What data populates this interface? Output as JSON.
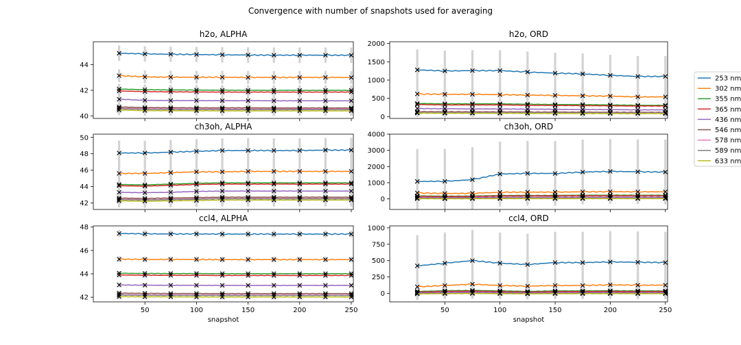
{
  "suptitle": "Convergence with number of snapshots used for averaging",
  "colors": [
    "#1f77b4",
    "#ff7f0e",
    "#2ca02c",
    "#d62728",
    "#9467bd",
    "#8c564b",
    "#e377c2",
    "#7f7f7f",
    "#bcbd22"
  ],
  "legend": {
    "placement": "right",
    "entries": [
      "253 nm",
      "302 nm",
      "355 nm",
      "365 nm",
      "436 nm",
      "546 nm",
      "578 nm",
      "589 nm",
      "633 nm"
    ]
  },
  "chart_data": [
    {
      "type": "line",
      "title": "h2o, ALPHA",
      "xlabel": "",
      "ylabel": "",
      "xlim": [
        0,
        252
      ],
      "ylim": [
        39.8,
        45.8
      ],
      "xticks": [
        50,
        100,
        150,
        200,
        250
      ],
      "yticks": [
        40,
        42,
        44
      ],
      "markers_x": [
        25,
        50,
        75,
        100,
        125,
        150,
        175,
        200,
        225,
        250
      ],
      "series": [
        {
          "label": "253 nm",
          "values": [
            44.9,
            44.85,
            44.82,
            44.8,
            44.78,
            44.76,
            44.75,
            44.75,
            44.75,
            44.74
          ],
          "err": 0.6
        },
        {
          "label": "302 nm",
          "values": [
            43.15,
            43.05,
            43.03,
            43.02,
            43.02,
            43.01,
            43.01,
            43.01,
            43.01,
            43.0
          ],
          "err": 0.5
        },
        {
          "label": "355 nm",
          "values": [
            42.1,
            42.05,
            42.03,
            42.02,
            42.01,
            42.0,
            42.0,
            42.0,
            42.0,
            42.0
          ],
          "err": 0.4
        },
        {
          "label": "365 nm",
          "values": [
            41.95,
            41.9,
            41.88,
            41.87,
            41.86,
            41.86,
            41.86,
            41.86,
            41.86,
            41.86
          ],
          "err": 0.4
        },
        {
          "label": "436 nm",
          "values": [
            41.3,
            41.22,
            41.2,
            41.2,
            41.19,
            41.19,
            41.18,
            41.18,
            41.18,
            41.18
          ],
          "err": 0.4
        },
        {
          "label": "546 nm",
          "values": [
            40.7,
            40.65,
            40.64,
            40.63,
            40.63,
            40.63,
            40.62,
            40.62,
            40.62,
            40.62
          ],
          "err": 0.4
        },
        {
          "label": "578 nm",
          "values": [
            40.6,
            40.56,
            40.55,
            40.55,
            40.54,
            40.54,
            40.54,
            40.54,
            40.54,
            40.54
          ],
          "err": 0.4
        },
        {
          "label": "589 nm",
          "values": [
            40.55,
            40.51,
            40.5,
            40.5,
            40.49,
            40.49,
            40.49,
            40.49,
            40.49,
            40.49
          ],
          "err": 0.4
        },
        {
          "label": "633 nm",
          "values": [
            40.45,
            40.41,
            40.4,
            40.4,
            40.39,
            40.39,
            40.39,
            40.39,
            40.39,
            40.39
          ],
          "err": 0.4
        }
      ]
    },
    {
      "type": "line",
      "title": "h2o, ORD",
      "xlabel": "",
      "ylabel": "",
      "xlim": [
        0,
        252
      ],
      "ylim": [
        -50,
        2050
      ],
      "xticks": [
        50,
        100,
        150,
        200,
        250
      ],
      "yticks": [
        0,
        500,
        1000,
        1500,
        2000
      ],
      "markers_x": [
        25,
        50,
        75,
        100,
        125,
        150,
        175,
        200,
        225,
        250
      ],
      "series": [
        {
          "label": "253 nm",
          "values": [
            1280,
            1250,
            1260,
            1260,
            1220,
            1190,
            1170,
            1130,
            1100,
            1100
          ],
          "err": 560
        },
        {
          "label": "302 nm",
          "values": [
            620,
            610,
            610,
            600,
            590,
            580,
            570,
            560,
            540,
            540
          ],
          "err": 300
        },
        {
          "label": "355 nm",
          "values": [
            360,
            350,
            350,
            350,
            340,
            330,
            330,
            320,
            310,
            310
          ],
          "err": 200
        },
        {
          "label": "365 nm",
          "values": [
            330,
            320,
            320,
            320,
            310,
            305,
            300,
            295,
            290,
            290
          ],
          "err": 180
        },
        {
          "label": "436 nm",
          "values": [
            220,
            215,
            210,
            210,
            205,
            200,
            195,
            190,
            185,
            185
          ],
          "err": 150
        },
        {
          "label": "546 nm",
          "values": [
            140,
            135,
            135,
            132,
            130,
            128,
            125,
            122,
            120,
            120
          ],
          "err": 120
        },
        {
          "label": "578 nm",
          "values": [
            125,
            120,
            120,
            118,
            116,
            114,
            112,
            110,
            108,
            108
          ],
          "err": 110
        },
        {
          "label": "589 nm",
          "values": [
            115,
            112,
            110,
            110,
            108,
            106,
            104,
            102,
            100,
            100
          ],
          "err": 110
        },
        {
          "label": "633 nm",
          "values": [
            95,
            92,
            90,
            90,
            88,
            86,
            85,
            84,
            82,
            82
          ],
          "err": 100
        }
      ]
    },
    {
      "type": "line",
      "title": "ch3oh, ALPHA",
      "xlabel": "",
      "ylabel": "",
      "xlim": [
        0,
        252
      ],
      "ylim": [
        41.2,
        50.4
      ],
      "xticks": [
        50,
        100,
        150,
        200,
        250
      ],
      "yticks": [
        42,
        44,
        46,
        48,
        50
      ],
      "markers_x": [
        25,
        50,
        75,
        100,
        125,
        150,
        175,
        200,
        225,
        250
      ],
      "series": [
        {
          "label": "253 nm",
          "values": [
            48.1,
            48.1,
            48.2,
            48.3,
            48.4,
            48.4,
            48.4,
            48.4,
            48.45,
            48.45
          ],
          "err": 1.5
        },
        {
          "label": "302 nm",
          "values": [
            45.6,
            45.6,
            45.7,
            45.8,
            45.8,
            45.85,
            45.85,
            45.85,
            45.85,
            45.85
          ],
          "err": 1.2
        },
        {
          "label": "355 nm",
          "values": [
            44.25,
            44.2,
            44.3,
            44.4,
            44.45,
            44.45,
            44.45,
            44.45,
            44.45,
            44.45
          ],
          "err": 1.0
        },
        {
          "label": "365 nm",
          "values": [
            44.1,
            44.05,
            44.15,
            44.25,
            44.3,
            44.3,
            44.3,
            44.3,
            44.3,
            44.3
          ],
          "err": 1.0
        },
        {
          "label": "436 nm",
          "values": [
            43.3,
            43.25,
            43.3,
            43.4,
            43.45,
            43.45,
            43.45,
            43.45,
            43.45,
            43.45
          ],
          "err": 0.9
        },
        {
          "label": "546 nm",
          "values": [
            42.6,
            42.55,
            42.6,
            42.65,
            42.7,
            42.7,
            42.7,
            42.7,
            42.7,
            42.7
          ],
          "err": 0.8
        },
        {
          "label": "578 nm",
          "values": [
            42.45,
            42.4,
            42.45,
            42.5,
            42.55,
            42.55,
            42.55,
            42.55,
            42.55,
            42.55
          ],
          "err": 0.8
        },
        {
          "label": "589 nm",
          "values": [
            42.4,
            42.35,
            42.4,
            42.45,
            42.5,
            42.5,
            42.5,
            42.5,
            42.5,
            42.5
          ],
          "err": 0.8
        },
        {
          "label": "633 nm",
          "values": [
            42.25,
            42.2,
            42.25,
            42.3,
            42.35,
            42.35,
            42.35,
            42.35,
            42.35,
            42.35
          ],
          "err": 0.8
        }
      ]
    },
    {
      "type": "line",
      "title": "ch3oh, ORD",
      "xlabel": "",
      "ylabel": "",
      "xlim": [
        0,
        252
      ],
      "ylim": [
        -650,
        4000
      ],
      "xticks": [
        50,
        100,
        150,
        200,
        250
      ],
      "yticks": [
        0,
        1000,
        2000,
        3000,
        4000
      ],
      "markers_x": [
        25,
        50,
        75,
        100,
        125,
        150,
        175,
        200,
        225,
        250
      ],
      "series": [
        {
          "label": "253 nm",
          "values": [
            1080,
            1090,
            1190,
            1540,
            1580,
            1570,
            1660,
            1700,
            1680,
            1660
          ],
          "err": 2000
        },
        {
          "label": "302 nm",
          "values": [
            370,
            340,
            350,
            410,
            420,
            420,
            440,
            450,
            440,
            440
          ],
          "err": 700
        },
        {
          "label": "355 nm",
          "values": [
            190,
            170,
            180,
            210,
            220,
            220,
            230,
            235,
            230,
            230
          ],
          "err": 450
        },
        {
          "label": "365 nm",
          "values": [
            160,
            140,
            150,
            180,
            190,
            190,
            195,
            200,
            195,
            195
          ],
          "err": 400
        },
        {
          "label": "436 nm",
          "values": [
            90,
            80,
            85,
            100,
            105,
            105,
            110,
            112,
            110,
            110
          ],
          "err": 300
        },
        {
          "label": "546 nm",
          "values": [
            40,
            35,
            38,
            45,
            48,
            48,
            50,
            52,
            50,
            50
          ],
          "err": 250
        },
        {
          "label": "578 nm",
          "values": [
            30,
            26,
            28,
            34,
            36,
            36,
            38,
            39,
            38,
            38
          ],
          "err": 250
        },
        {
          "label": "589 nm",
          "values": [
            25,
            22,
            24,
            30,
            32,
            32,
            33,
            34,
            33,
            33
          ],
          "err": 250
        },
        {
          "label": "633 nm",
          "values": [
            15,
            12,
            14,
            18,
            20,
            20,
            21,
            22,
            21,
            21
          ],
          "err": 250
        }
      ]
    },
    {
      "type": "line",
      "title": "ccl4, ALPHA",
      "xlabel": "snapshot",
      "ylabel": "",
      "xlim": [
        0,
        252
      ],
      "ylim": [
        41.6,
        48.1
      ],
      "xticks": [
        50,
        100,
        150,
        200,
        250
      ],
      "yticks": [
        42,
        44,
        46,
        48
      ],
      "markers_x": [
        25,
        50,
        75,
        100,
        125,
        150,
        175,
        200,
        225,
        250
      ],
      "series": [
        {
          "label": "253 nm",
          "values": [
            47.45,
            47.42,
            47.41,
            47.41,
            47.4,
            47.4,
            47.4,
            47.4,
            47.4,
            47.4
          ],
          "err": 0.3
        },
        {
          "label": "302 nm",
          "values": [
            45.25,
            45.23,
            45.23,
            45.23,
            45.22,
            45.22,
            45.22,
            45.22,
            45.22,
            45.22
          ],
          "err": 0.25
        },
        {
          "label": "355 nm",
          "values": [
            44.05,
            44.03,
            44.02,
            44.02,
            44.01,
            44.01,
            44.01,
            44.01,
            44.01,
            44.01
          ],
          "err": 0.2
        },
        {
          "label": "365 nm",
          "values": [
            43.9,
            43.88,
            43.87,
            43.87,
            43.86,
            43.86,
            43.86,
            43.86,
            43.86,
            43.86
          ],
          "err": 0.2
        },
        {
          "label": "436 nm",
          "values": [
            43.05,
            43.03,
            43.02,
            43.02,
            43.01,
            43.01,
            43.01,
            43.01,
            43.01,
            43.01
          ],
          "err": 0.2
        },
        {
          "label": "546 nm",
          "values": [
            42.35,
            42.33,
            42.32,
            42.32,
            42.31,
            42.31,
            42.31,
            42.31,
            42.31,
            42.31
          ],
          "err": 0.2
        },
        {
          "label": "578 nm",
          "values": [
            42.22,
            42.2,
            42.2,
            42.19,
            42.19,
            42.19,
            42.19,
            42.19,
            42.19,
            42.19
          ],
          "err": 0.2
        },
        {
          "label": "589 nm",
          "values": [
            42.18,
            42.16,
            42.16,
            42.15,
            42.15,
            42.15,
            42.15,
            42.15,
            42.15,
            42.15
          ],
          "err": 0.2
        },
        {
          "label": "633 nm",
          "values": [
            42.05,
            42.03,
            42.03,
            42.02,
            42.02,
            42.02,
            42.02,
            42.02,
            42.02,
            42.02
          ],
          "err": 0.2
        }
      ]
    },
    {
      "type": "line",
      "title": "ccl4, ORD",
      "xlabel": "snapshot",
      "ylabel": "",
      "xlim": [
        0,
        252
      ],
      "ylim": [
        -130,
        1030
      ],
      "xticks": [
        50,
        100,
        150,
        200,
        250
      ],
      "yticks": [
        0,
        250,
        500,
        750,
        1000
      ],
      "markers_x": [
        25,
        50,
        75,
        100,
        125,
        150,
        175,
        200,
        225,
        250
      ],
      "series": [
        {
          "label": "253 nm",
          "values": [
            420,
            460,
            500,
            460,
            440,
            470,
            470,
            480,
            475,
            470
          ],
          "err": 470
        },
        {
          "label": "302 nm",
          "values": [
            100,
            120,
            140,
            120,
            110,
            120,
            120,
            130,
            125,
            125
          ],
          "err": 200
        },
        {
          "label": "355 nm",
          "values": [
            30,
            40,
            45,
            38,
            30,
            38,
            38,
            40,
            38,
            38
          ],
          "err": 120
        },
        {
          "label": "365 nm",
          "values": [
            20,
            30,
            35,
            28,
            20,
            28,
            28,
            30,
            28,
            28
          ],
          "err": 110
        },
        {
          "label": "436 nm",
          "values": [
            10,
            15,
            20,
            15,
            10,
            14,
            14,
            15,
            14,
            14
          ],
          "err": 90
        },
        {
          "label": "546 nm",
          "values": [
            0,
            3,
            6,
            3,
            0,
            3,
            3,
            4,
            3,
            3
          ],
          "err": 80
        },
        {
          "label": "578 nm",
          "values": [
            -3,
            0,
            3,
            0,
            -3,
            0,
            0,
            1,
            0,
            0
          ],
          "err": 80
        },
        {
          "label": "589 nm",
          "values": [
            -5,
            -2,
            1,
            -2,
            -5,
            -2,
            -2,
            -1,
            -2,
            -2
          ],
          "err": 80
        },
        {
          "label": "633 nm",
          "values": [
            -8,
            -5,
            -2,
            -5,
            -8,
            -5,
            -5,
            -4,
            -5,
            -5
          ],
          "err": 80
        }
      ]
    }
  ]
}
